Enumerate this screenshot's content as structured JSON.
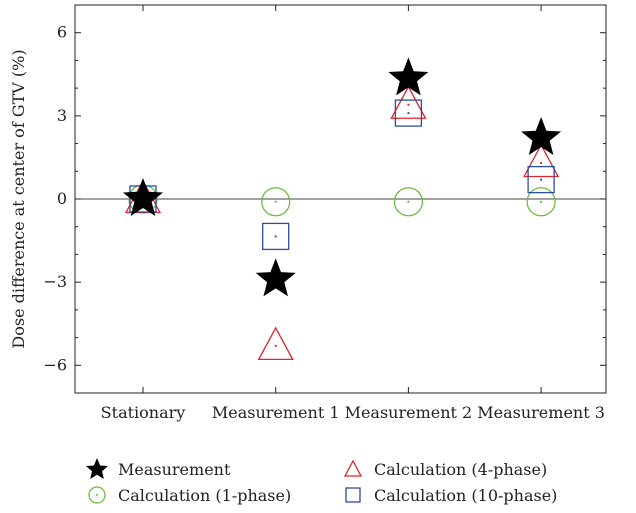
{
  "chart_data": {
    "type": "scatter",
    "ylabel": "Dose difference at center of GTV (%)",
    "ylim": [
      -7,
      7
    ],
    "yticks": [
      -6,
      -3,
      0,
      3,
      6
    ],
    "ytick_labels": [
      "−6",
      "−3",
      "0",
      "3",
      "6"
    ],
    "categories": [
      "Stationary",
      "Measurement 1",
      "Measurement 2",
      "Measurement 3"
    ],
    "zero_line": true,
    "grid": false,
    "legend_position": "bottom",
    "series": [
      {
        "name": "Measurement",
        "marker": "star",
        "color": "#000000",
        "values": [
          0.0,
          -2.9,
          4.35,
          2.2
        ]
      },
      {
        "name": "Calculation (1-phase)",
        "marker": "circle",
        "color": "#6abf3d",
        "values": [
          0.0,
          -0.1,
          -0.1,
          -0.1
        ]
      },
      {
        "name": "Calculation (4-phase)",
        "marker": "triangle",
        "color": "#e0242b",
        "values": [
          0.0,
          -5.3,
          3.4,
          1.3
        ]
      },
      {
        "name": "Calculation (10-phase)",
        "marker": "square",
        "color": "#2a4f9e",
        "values": [
          0.0,
          -1.35,
          3.1,
          0.7
        ]
      }
    ]
  }
}
